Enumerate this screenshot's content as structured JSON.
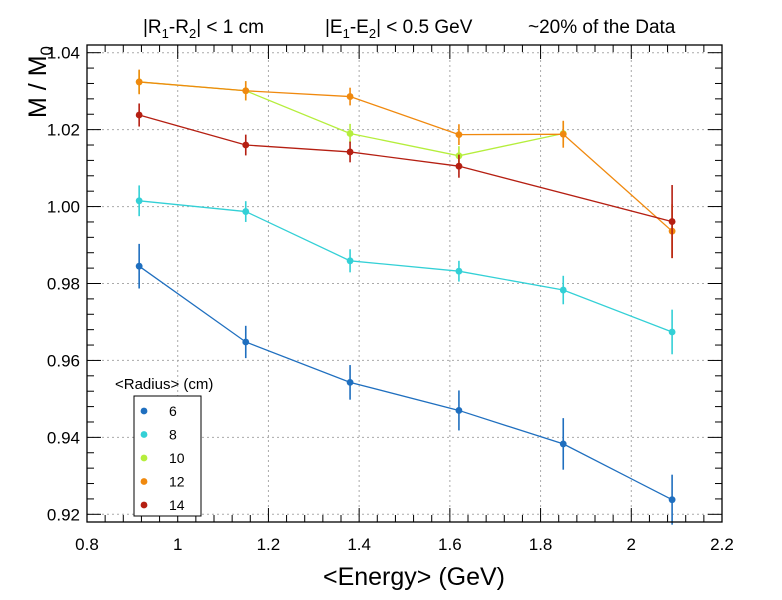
{
  "chart_data": {
    "type": "scatter",
    "header": {
      "cut1": {
        "pre": "|R",
        "s1": "1",
        "mid": "-R",
        "s2": "2",
        "post": "| < 1 cm"
      },
      "cut2": {
        "pre": "|E",
        "s1": "1",
        "mid": "-E",
        "s2": "2",
        "post": "| < 0.5 GeV"
      },
      "note": "~20% of the Data"
    },
    "xlabel": "<Energy>  (GeV)",
    "ylabel": {
      "main": "M / M",
      "sub": "0"
    },
    "xlim": [
      0.8,
      2.2
    ],
    "ylim": [
      0.918,
      1.042
    ],
    "xticks": [
      0.8,
      1,
      1.2,
      1.4,
      1.6,
      1.8,
      2,
      2.2
    ],
    "xtick_labels": [
      "0.8",
      "1",
      "1.2",
      "1.4",
      "1.6",
      "1.8",
      "2",
      "2.2"
    ],
    "yticks": [
      0.92,
      0.94,
      0.96,
      0.98,
      1.0,
      1.02,
      1.04
    ],
    "ytick_labels": [
      "0.92",
      "0.94",
      "0.96",
      "0.98",
      "1.00",
      "1.02",
      "1.04"
    ],
    "grid": true,
    "legend": {
      "title": "<Radius> (cm)",
      "position": "bottom-left"
    },
    "series": [
      {
        "name": "6",
        "color": "#1f6fbf",
        "x": [
          0.915,
          1.15,
          1.38,
          1.62,
          1.85,
          2.09
        ],
        "y": [
          0.9845,
          0.9648,
          0.9543,
          0.947,
          0.9383,
          0.9238
        ],
        "err": [
          0.0058,
          0.0042,
          0.0045,
          0.0052,
          0.0067,
          0.0065
        ]
      },
      {
        "name": "8",
        "color": "#33d0d6",
        "x": [
          0.915,
          1.15,
          1.38,
          1.62,
          1.85,
          2.09
        ],
        "y": [
          1.0015,
          0.9987,
          0.9859,
          0.9832,
          0.9783,
          0.9674
        ],
        "err": [
          0.004,
          0.0027,
          0.003,
          0.0027,
          0.0037,
          0.0058
        ]
      },
      {
        "name": "10",
        "color": "#b5ee3c",
        "x": [
          0.915,
          1.15,
          1.38,
          1.62,
          1.85
        ],
        "y": [
          1.0324,
          1.0301,
          1.019,
          1.0132,
          1.019
        ],
        "err": [
          0.003,
          0.0025,
          0.0025,
          0.0025,
          0.003
        ]
      },
      {
        "name": "12",
        "color": "#f0890e",
        "x": [
          0.915,
          1.15,
          1.38,
          1.62,
          1.85,
          2.09
        ],
        "y": [
          1.0324,
          1.0301,
          1.0286,
          1.0187,
          1.0188,
          0.9936
        ],
        "err": [
          0.0032,
          0.0025,
          0.0023,
          0.0027,
          0.0035,
          0.007
        ]
      },
      {
        "name": "14",
        "color": "#b51f12",
        "x": [
          0.915,
          1.15,
          1.38,
          1.62,
          2.09
        ],
        "y": [
          1.0238,
          1.016,
          1.0142,
          1.0105,
          0.9961
        ],
        "err": [
          0.003,
          0.0027,
          0.0027,
          0.003,
          0.0095
        ]
      }
    ]
  }
}
